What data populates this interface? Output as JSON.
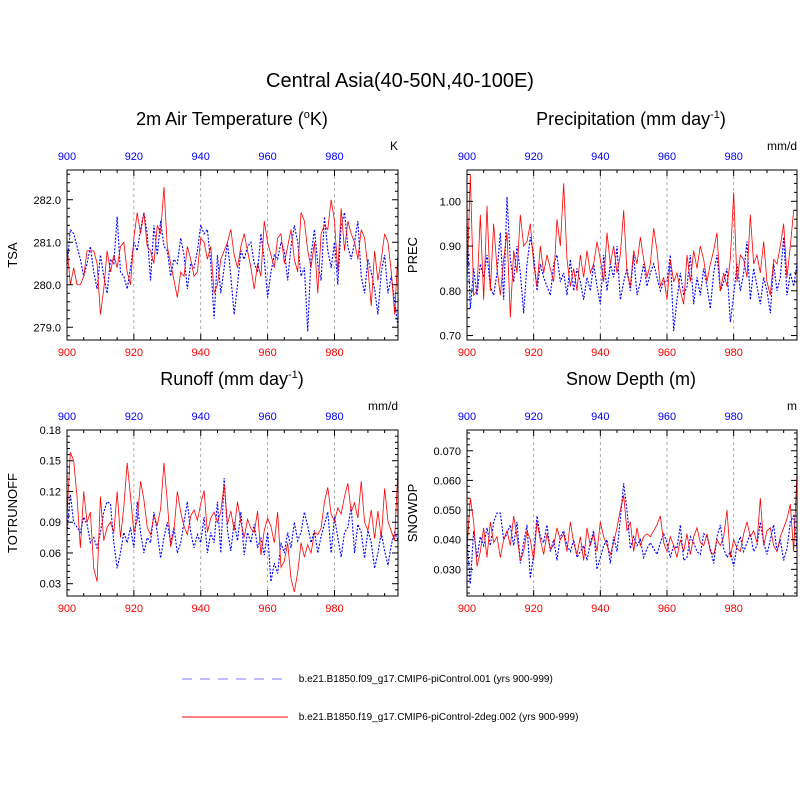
{
  "title": "Central Asia(40-50N,40-100E)",
  "colors": {
    "blue": "#0000ff",
    "red": "#ff0000",
    "grid": "#999999"
  },
  "legend": [
    {
      "label": "b.e21.B1850.f09_g17.CMIP6-piControl.001 (yrs 900-999)",
      "color": "#0000ff",
      "style": "dashed"
    },
    {
      "label": "b.e21.B1850.f19_g17.CMIP6-piControl-2deg.002 (yrs 900-999)",
      "color": "#ff0000",
      "style": "solid"
    }
  ],
  "chart_data": [
    {
      "type": "line",
      "id": "tsa",
      "title_pre": "2m Air Temperature (",
      "title_sup": "o",
      "title_post": "K)",
      "ylabel": "TSA",
      "units": "K",
      "xlim": [
        900,
        999
      ],
      "ylim": [
        278.7,
        282.7
      ],
      "yticks": [
        279.0,
        280.0,
        281.0,
        282.0
      ],
      "ytick_labels": [
        "279.0",
        "280.0",
        "281.0",
        "282.0"
      ],
      "xticks": [
        900,
        920,
        940,
        960,
        980
      ],
      "xtick_labels": [
        "900",
        "920",
        "940",
        "960",
        "980"
      ],
      "series": [
        {
          "name": "b.e21.B1850.f09_g17.CMIP6-piControl.001",
          "color": "#0000ff",
          "dash": true,
          "x_start": 900,
          "values": [
            280.4,
            281.3,
            281.2,
            280.9,
            280.6,
            280.2,
            280.5,
            280.9,
            280.3,
            279.9,
            280.7,
            280.2,
            279.8,
            280.6,
            280.5,
            281.6,
            280.3,
            280.2,
            279.9,
            280.4,
            281.0,
            280.8,
            281.3,
            281.7,
            281.2,
            280.1,
            281.4,
            280.7,
            281.5,
            280.9,
            280.8,
            280.2,
            280.6,
            280.5,
            281.1,
            280.7,
            279.9,
            280.5,
            280.4,
            280.8,
            281.4,
            281.2,
            281.3,
            280.5,
            279.2,
            280.7,
            279.8,
            280.4,
            281.0,
            280.2,
            279.3,
            280.0,
            280.8,
            280.6,
            280.9,
            281.0,
            280.5,
            280.3,
            281.2,
            280.6,
            279.7,
            280.3,
            280.7,
            280.6,
            281.0,
            280.8,
            280.1,
            280.9,
            281.4,
            281.0,
            280.2,
            280.4,
            278.9,
            280.7,
            281.3,
            280.5,
            280.1,
            281.6,
            280.8,
            280.4,
            281.0,
            280.0,
            281.4,
            281.7,
            280.9,
            280.6,
            281.0,
            281.5,
            280.2,
            279.8,
            280.6,
            280.3,
            279.9,
            279.3,
            280.3,
            280.7,
            279.8,
            280.2,
            279.6,
            279.0
          ]
        },
        {
          "name": "b.e21.B1850.f19_g17.CMIP6-piControl-2deg.002",
          "color": "#ff0000",
          "dash": false,
          "x_start": 900,
          "values": [
            280.9,
            280.0,
            280.4,
            280.0,
            280.0,
            280.2,
            280.8,
            280.8,
            280.8,
            280.5,
            279.3,
            279.9,
            280.8,
            280.3,
            280.7,
            280.4,
            280.9,
            281.0,
            280.3,
            280.0,
            281.1,
            281.7,
            281.2,
            281.7,
            280.9,
            280.8,
            280.5,
            281.4,
            281.2,
            282.3,
            280.9,
            280.5,
            280.1,
            279.7,
            280.3,
            280.2,
            280.9,
            280.6,
            280.2,
            280.3,
            281.1,
            281.0,
            280.6,
            280.9,
            279.8,
            280.0,
            280.6,
            280.8,
            281.0,
            281.3,
            280.7,
            280.4,
            280.9,
            281.2,
            280.8,
            280.4,
            279.9,
            280.5,
            280.2,
            281.5,
            281.0,
            280.7,
            280.4,
            281.1,
            281.2,
            280.5,
            280.9,
            281.3,
            280.6,
            280.3,
            281.7,
            281.5,
            280.8,
            280.4,
            281.0,
            279.8,
            281.2,
            281.4,
            281.3,
            282.0,
            281.5,
            280.3,
            281.8,
            280.8,
            281.5,
            281.2,
            281.0,
            280.6,
            281.3,
            281.1,
            280.4,
            279.5,
            280.8,
            280.1,
            280.6,
            281.2,
            281.0,
            280.3,
            279.3,
            280.8
          ]
        }
      ]
    },
    {
      "type": "line",
      "id": "prec",
      "title_pre": "Precipitation (mm day",
      "title_sup": "-1",
      "title_post": ")",
      "ylabel": "PREC",
      "units": "mm/d",
      "xlim": [
        900,
        999
      ],
      "ylim": [
        0.69,
        1.07
      ],
      "yticks": [
        0.7,
        0.8,
        0.9,
        1.0
      ],
      "ytick_labels": [
        "0.70",
        "0.80",
        "0.90",
        "1.00"
      ],
      "xticks": [
        900,
        920,
        940,
        960,
        980
      ],
      "xtick_labels": [
        "900",
        "920",
        "940",
        "960",
        "980"
      ],
      "series": [
        {
          "name": "b.e21.B1850.f09_g17.CMIP6-piControl.001",
          "color": "#0000ff",
          "dash": true,
          "x_start": 900,
          "values": [
            0.96,
            0.76,
            0.85,
            0.79,
            0.86,
            0.83,
            0.88,
            0.81,
            0.79,
            0.84,
            0.93,
            0.78,
            1.01,
            0.87,
            0.82,
            0.9,
            0.84,
            0.75,
            0.86,
            0.92,
            0.88,
            0.8,
            0.86,
            0.83,
            0.81,
            0.79,
            0.86,
            0.88,
            0.82,
            0.84,
            0.79,
            0.87,
            0.8,
            0.85,
            0.82,
            0.78,
            0.83,
            0.8,
            0.86,
            0.81,
            0.77,
            0.88,
            0.8,
            0.86,
            0.83,
            0.9,
            0.78,
            0.82,
            0.85,
            0.8,
            0.88,
            0.79,
            0.82,
            0.86,
            0.81,
            0.84,
            0.86,
            0.83,
            0.8,
            0.82,
            0.82,
            0.88,
            0.71,
            0.78,
            0.84,
            0.79,
            0.81,
            0.88,
            0.77,
            0.83,
            0.79,
            0.85,
            0.81,
            0.76,
            0.84,
            0.88,
            0.8,
            0.82,
            0.85,
            0.73,
            0.79,
            0.86,
            0.8,
            0.84,
            0.91,
            0.78,
            0.85,
            0.81,
            0.77,
            0.83,
            0.8,
            0.75,
            0.86,
            0.8,
            0.83,
            0.92,
            0.79,
            0.84,
            0.81,
            0.86
          ]
        },
        {
          "name": "b.e21.B1850.f19_g17.CMIP6-piControl-2deg.002",
          "color": "#ff0000",
          "dash": false,
          "x_start": 900,
          "values": [
            0.82,
            1.06,
            0.79,
            0.8,
            0.97,
            0.78,
            0.99,
            0.8,
            0.95,
            0.85,
            0.79,
            0.87,
            0.93,
            0.74,
            0.89,
            0.84,
            0.97,
            0.9,
            0.91,
            0.95,
            0.86,
            0.81,
            0.9,
            0.84,
            0.88,
            0.85,
            0.82,
            0.96,
            0.9,
            1.04,
            0.87,
            0.81,
            0.85,
            0.8,
            0.88,
            0.83,
            0.89,
            0.84,
            0.86,
            0.91,
            0.87,
            0.82,
            0.93,
            0.86,
            0.9,
            0.84,
            0.88,
            0.98,
            0.84,
            0.81,
            0.89,
            0.86,
            0.92,
            0.87,
            0.83,
            0.86,
            0.94,
            0.89,
            0.81,
            0.83,
            0.78,
            0.87,
            0.82,
            0.84,
            0.8,
            0.77,
            0.88,
            0.82,
            0.89,
            0.85,
            0.9,
            0.87,
            0.82,
            0.86,
            0.89,
            0.93,
            0.8,
            0.84,
            0.81,
            0.87,
            1.02,
            0.82,
            0.88,
            0.87,
            0.83,
            0.97,
            0.86,
            0.88,
            0.84,
            0.91,
            0.82,
            0.79,
            0.87,
            0.86,
            0.9,
            0.95,
            0.83,
            0.9,
            0.98,
            0.98
          ]
        }
      ]
    },
    {
      "type": "line",
      "id": "runoff",
      "title_pre": "Runoff (mm day",
      "title_sup": "-1",
      "title_post": ")",
      "ylabel": "TOTRUNOFF",
      "units": "mm/d",
      "xlim": [
        900,
        999
      ],
      "ylim": [
        0.018,
        0.18
      ],
      "yticks": [
        0.03,
        0.06,
        0.09,
        0.12,
        0.15,
        0.18
      ],
      "ytick_labels": [
        "0.03",
        "0.06",
        "0.09",
        "0.12",
        "0.15",
        "0.18"
      ],
      "xticks": [
        900,
        920,
        940,
        960,
        980
      ],
      "xtick_labels": [
        "900",
        "920",
        "940",
        "960",
        "980"
      ],
      "series": [
        {
          "name": "b.e21.B1850.f09_g17.CMIP6-piControl.001",
          "color": "#0000ff",
          "dash": true,
          "x_start": 900,
          "values": [
            0.08,
            0.117,
            0.09,
            0.085,
            0.08,
            0.095,
            0.088,
            0.07,
            0.075,
            0.065,
            0.08,
            0.1,
            0.11,
            0.108,
            0.07,
            0.045,
            0.06,
            0.08,
            0.07,
            0.085,
            0.065,
            0.11,
            0.08,
            0.06,
            0.075,
            0.07,
            0.1,
            0.08,
            0.055,
            0.075,
            0.09,
            0.07,
            0.085,
            0.06,
            0.07,
            0.09,
            0.11,
            0.08,
            0.065,
            0.078,
            0.07,
            0.095,
            0.06,
            0.08,
            0.07,
            0.11,
            0.06,
            0.133,
            0.082,
            0.062,
            0.09,
            0.072,
            0.1,
            0.058,
            0.08,
            0.07,
            0.088,
            0.065,
            0.075,
            0.058,
            0.08,
            0.032,
            0.05,
            0.04,
            0.07,
            0.06,
            0.08,
            0.065,
            0.09,
            0.072,
            0.08,
            0.1,
            0.086,
            0.07,
            0.082,
            0.06,
            0.076,
            0.088,
            0.1,
            0.06,
            0.095,
            0.075,
            0.056,
            0.08,
            0.085,
            0.105,
            0.06,
            0.088,
            0.08,
            0.055,
            0.082,
            0.07,
            0.045,
            0.06,
            0.08,
            0.062,
            0.048,
            0.068,
            0.08,
            0.072
          ]
        },
        {
          "name": "b.e21.B1850.f19_g17.CMIP6-piControl-2deg.002",
          "color": "#ff0000",
          "dash": false,
          "x_start": 900,
          "values": [
            0.095,
            0.158,
            0.15,
            0.115,
            0.065,
            0.12,
            0.09,
            0.1,
            0.045,
            0.032,
            0.115,
            0.072,
            0.085,
            0.09,
            0.08,
            0.12,
            0.075,
            0.105,
            0.148,
            0.115,
            0.08,
            0.092,
            0.13,
            0.112,
            0.085,
            0.078,
            0.096,
            0.087,
            0.103,
            0.148,
            0.11,
            0.066,
            0.082,
            0.12,
            0.1,
            0.086,
            0.078,
            0.096,
            0.102,
            0.092,
            0.108,
            0.121,
            0.08,
            0.094,
            0.1,
            0.09,
            0.1,
            0.127,
            0.088,
            0.101,
            0.082,
            0.11,
            0.09,
            0.075,
            0.093,
            0.084,
            0.08,
            0.101,
            0.058,
            0.082,
            0.094,
            0.086,
            0.07,
            0.1,
            0.046,
            0.052,
            0.07,
            0.035,
            0.022,
            0.041,
            0.07,
            0.056,
            0.068,
            0.06,
            0.08,
            0.078,
            0.084,
            0.11,
            0.124,
            0.098,
            0.091,
            0.104,
            0.098,
            0.115,
            0.128,
            0.1,
            0.109,
            0.094,
            0.13,
            0.09,
            0.082,
            0.102,
            0.074,
            0.101,
            0.074,
            0.123,
            0.091,
            0.081,
            0.072,
            0.145
          ]
        }
      ]
    },
    {
      "type": "line",
      "id": "snowdp",
      "title_pre": "Snow Depth (m)",
      "title_sup": "",
      "title_post": "",
      "ylabel": "SNOWDP",
      "units": "m",
      "xlim": [
        900,
        999
      ],
      "ylim": [
        0.021,
        0.077
      ],
      "yticks": [
        0.03,
        0.04,
        0.05,
        0.06,
        0.07
      ],
      "ytick_labels": [
        "0.030",
        "0.040",
        "0.050",
        "0.060",
        "0.070"
      ],
      "xticks": [
        900,
        920,
        940,
        960,
        980
      ],
      "xtick_labels": [
        "900",
        "920",
        "940",
        "960",
        "980"
      ],
      "series": [
        {
          "name": "b.e21.B1850.f09_g17.CMIP6-piControl.001",
          "color": "#0000ff",
          "dash": true,
          "x_start": 900,
          "values": [
            0.04,
            0.025,
            0.043,
            0.034,
            0.041,
            0.038,
            0.044,
            0.038,
            0.046,
            0.049,
            0.049,
            0.04,
            0.042,
            0.045,
            0.038,
            0.046,
            0.032,
            0.039,
            0.045,
            0.027,
            0.035,
            0.048,
            0.041,
            0.039,
            0.045,
            0.036,
            0.04,
            0.033,
            0.041,
            0.043,
            0.038,
            0.036,
            0.04,
            0.034,
            0.036,
            0.038,
            0.033,
            0.039,
            0.043,
            0.03,
            0.034,
            0.038,
            0.04,
            0.032,
            0.041,
            0.036,
            0.047,
            0.059,
            0.05,
            0.037,
            0.041,
            0.038,
            0.04,
            0.034,
            0.037,
            0.039,
            0.037,
            0.035,
            0.039,
            0.042,
            0.039,
            0.034,
            0.038,
            0.037,
            0.045,
            0.033,
            0.034,
            0.041,
            0.039,
            0.036,
            0.035,
            0.042,
            0.041,
            0.037,
            0.032,
            0.041,
            0.045,
            0.037,
            0.034,
            0.036,
            0.031,
            0.038,
            0.041,
            0.036,
            0.039,
            0.042,
            0.036,
            0.038,
            0.046,
            0.039,
            0.035,
            0.04,
            0.045,
            0.036,
            0.04,
            0.033,
            0.037,
            0.046,
            0.048,
            0.037
          ]
        },
        {
          "name": "b.e21.B1850.f19_g17.CMIP6-piControl-2deg.002",
          "color": "#ff0000",
          "dash": false,
          "x_start": 900,
          "values": [
            0.037,
            0.054,
            0.046,
            0.031,
            0.036,
            0.044,
            0.034,
            0.046,
            0.039,
            0.041,
            0.034,
            0.04,
            0.043,
            0.038,
            0.048,
            0.041,
            0.033,
            0.036,
            0.043,
            0.04,
            0.033,
            0.046,
            0.04,
            0.035,
            0.042,
            0.037,
            0.038,
            0.044,
            0.04,
            0.042,
            0.036,
            0.046,
            0.039,
            0.035,
            0.041,
            0.033,
            0.044,
            0.038,
            0.042,
            0.036,
            0.046,
            0.041,
            0.038,
            0.035,
            0.039,
            0.044,
            0.05,
            0.055,
            0.043,
            0.046,
            0.036,
            0.044,
            0.038,
            0.041,
            0.042,
            0.041,
            0.043,
            0.045,
            0.048,
            0.039,
            0.036,
            0.041,
            0.038,
            0.034,
            0.04,
            0.036,
            0.042,
            0.035,
            0.041,
            0.044,
            0.039,
            0.038,
            0.042,
            0.036,
            0.035,
            0.04,
            0.038,
            0.041,
            0.05,
            0.034,
            0.04,
            0.037,
            0.036,
            0.042,
            0.046,
            0.041,
            0.043,
            0.039,
            0.054,
            0.038,
            0.043,
            0.044,
            0.038,
            0.036,
            0.041,
            0.044,
            0.047,
            0.052,
            0.036,
            0.063
          ]
        }
      ]
    }
  ]
}
